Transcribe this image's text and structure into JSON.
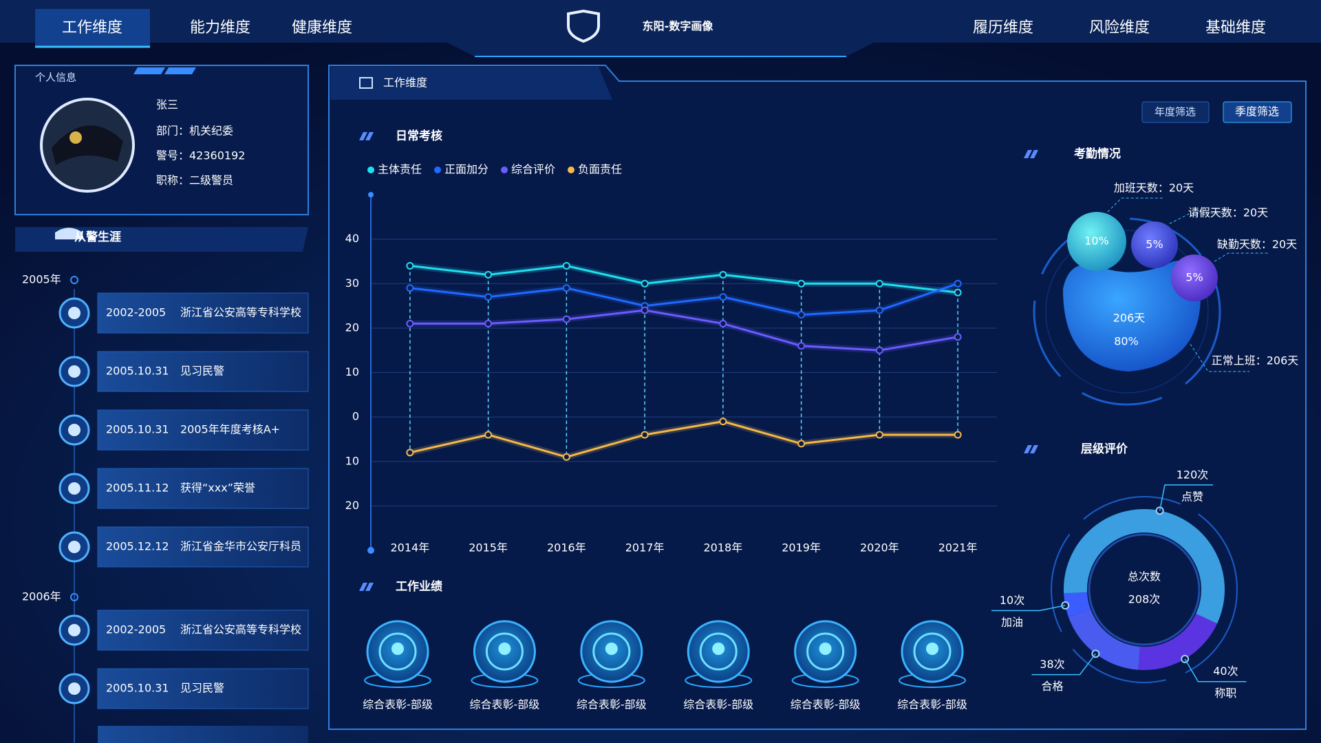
{
  "nav": {
    "left": [
      "工作维度",
      "能力维度",
      "健康维度"
    ],
    "right": [
      "履历维度",
      "风险维度",
      "基础维度"
    ]
  },
  "header": {
    "title": "东阳-数字画像"
  },
  "profile": {
    "title": "个人信息",
    "name": "张三",
    "fields": [
      "部门：机关纪委",
      "警号：42360192",
      "职称：二级警员"
    ]
  },
  "career": {
    "title": "从警生涯",
    "groups": [
      {
        "year": "2005年",
        "items": [
          {
            "date": "2002-2005",
            "text": "浙江省公安高等专科学校"
          },
          {
            "date": "2005.10.31",
            "text": "见习民警"
          },
          {
            "date": "2005.10.31",
            "text": "2005年年度考核A+"
          },
          {
            "date": "2005.11.12",
            "text": "获得“xxx”荣誉"
          },
          {
            "date": "2005.12.12",
            "text": "浙江省金华市公安厅科员"
          }
        ]
      },
      {
        "year": "2006年",
        "items": [
          {
            "date": "2002-2005",
            "text": "浙江省公安高等专科学校"
          },
          {
            "date": "2005.10.31",
            "text": "见习民警"
          }
        ]
      }
    ]
  },
  "panel": {
    "title": "工作维度",
    "filters": [
      "年度筛选",
      "季度筛选"
    ]
  },
  "attendance": {
    "title": "考勤情况",
    "labels": [
      "加班天数：20天",
      "请假天数：20天",
      "缺勤天数：20天",
      "正常上班：206天"
    ],
    "bubbles": [
      "10%",
      "5%",
      "5%"
    ],
    "main": "206天",
    "main_percent": "80%"
  },
  "achievements": {
    "title": "工作业绩",
    "items": [
      "综合表彰-部级",
      "综合表彰-部级",
      "综合表彰-部级",
      "综合表彰-部级",
      "综合表彰-部级",
      "综合表彰-部级"
    ]
  },
  "chart_data": [
    {
      "type": "line",
      "title": "日常考核",
      "categories": [
        "2014年",
        "2015年",
        "2016年",
        "2017年",
        "2018年",
        "2019年",
        "2020年",
        "2021年"
      ],
      "series": [
        {
          "name": "主体责任",
          "color": "#1fe0f0",
          "values": [
            34,
            32,
            34,
            30,
            32,
            30,
            30,
            28
          ]
        },
        {
          "name": "正面加分",
          "color": "#1f6bff",
          "values": [
            29,
            27,
            29,
            25,
            27,
            23,
            24,
            30
          ]
        },
        {
          "name": "综合评价",
          "color": "#6a5cff",
          "values": [
            21,
            21,
            22,
            24,
            21,
            16,
            15,
            18
          ]
        },
        {
          "name": "负面责任",
          "color": "#f5b94a",
          "values": [
            -8,
            -4,
            -9,
            -4,
            -1,
            -6,
            -4,
            -4
          ]
        }
      ],
      "ylim": [
        -30,
        50
      ],
      "yticks": [
        40,
        30,
        20,
        10,
        0,
        {
          "value": -10,
          "label": "10"
        },
        {
          "value": -20,
          "label": "20"
        }
      ],
      "grid": true
    },
    {
      "type": "donut",
      "title": "层级评价",
      "categories": [
        "加油",
        "点赞",
        "称职",
        "合格"
      ],
      "values": [
        10,
        120,
        40,
        38
      ],
      "value_labels": [
        "10次",
        "120次",
        "40次",
        "38次"
      ],
      "colors": [
        "#3b5cff",
        "#3a9ee0",
        "#5a34e0",
        "#4a5cf0"
      ],
      "center_label": "总次数",
      "center_value": "208次"
    }
  ]
}
